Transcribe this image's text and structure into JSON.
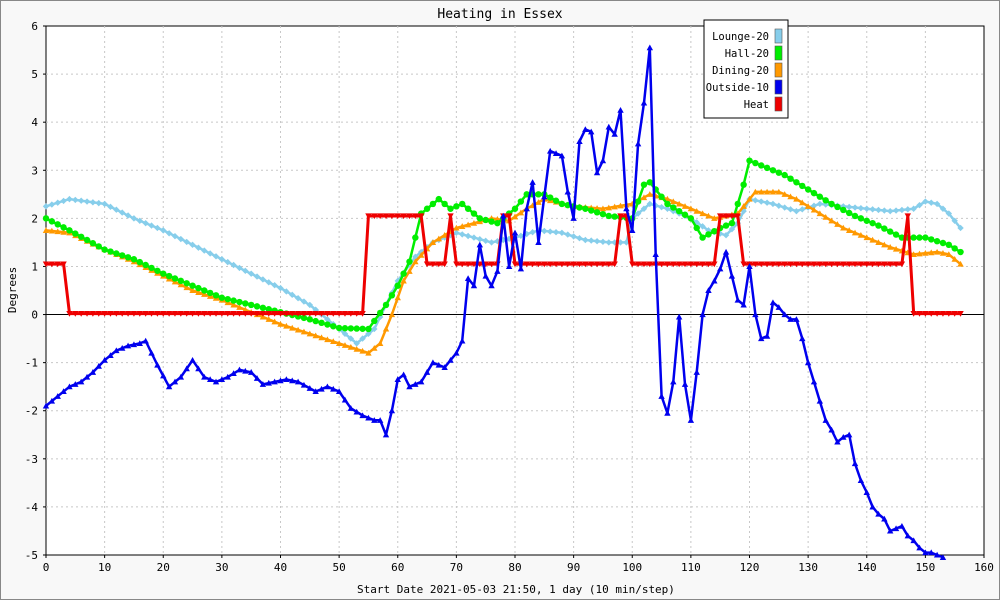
{
  "chart_data": {
    "type": "line",
    "title": "Heating in Essex",
    "xlabel": "Start Date 2021-05-03 21:50, 1 day (10 min/step)",
    "ylabel": "Degrees",
    "xlim": [
      0,
      160
    ],
    "ylim": [
      -5,
      6
    ],
    "x_ticks": [
      0,
      10,
      20,
      30,
      40,
      50,
      60,
      70,
      80,
      90,
      100,
      110,
      120,
      130,
      140,
      150,
      160
    ],
    "y_ticks": [
      -5,
      -4,
      -3,
      -2,
      -1,
      0,
      1,
      2,
      3,
      4,
      5,
      6
    ],
    "grid": true,
    "legend_position": "top-right",
    "series": [
      {
        "name": "Lounge-20",
        "color": "#87ceeb",
        "marker": "diamond",
        "points": [
          [
            0,
            2.25
          ],
          [
            4,
            2.4
          ],
          [
            10,
            2.3
          ],
          [
            15,
            2.0
          ],
          [
            20,
            1.75
          ],
          [
            25,
            1.45
          ],
          [
            30,
            1.15
          ],
          [
            35,
            0.85
          ],
          [
            40,
            0.55
          ],
          [
            45,
            0.2
          ],
          [
            50,
            -0.3
          ],
          [
            53,
            -0.6
          ],
          [
            56,
            -0.3
          ],
          [
            58,
            0.2
          ],
          [
            60,
            0.7
          ],
          [
            63,
            1.2
          ],
          [
            66,
            1.5
          ],
          [
            70,
            1.7
          ],
          [
            73,
            1.6
          ],
          [
            76,
            1.5
          ],
          [
            80,
            1.6
          ],
          [
            84,
            1.75
          ],
          [
            88,
            1.7
          ],
          [
            92,
            1.55
          ],
          [
            96,
            1.5
          ],
          [
            99,
            1.5
          ],
          [
            100,
            2.0
          ],
          [
            103,
            2.3
          ],
          [
            106,
            2.2
          ],
          [
            110,
            2.0
          ],
          [
            113,
            1.75
          ],
          [
            116,
            1.65
          ],
          [
            118,
            1.9
          ],
          [
            120,
            2.4
          ],
          [
            124,
            2.3
          ],
          [
            128,
            2.15
          ],
          [
            132,
            2.3
          ],
          [
            136,
            2.25
          ],
          [
            140,
            2.2
          ],
          [
            144,
            2.15
          ],
          [
            148,
            2.2
          ],
          [
            150,
            2.35
          ],
          [
            152,
            2.3
          ],
          [
            154,
            2.1
          ],
          [
            156,
            1.8
          ]
        ]
      },
      {
        "name": "Hall-20",
        "color": "#00ee00",
        "marker": "circle",
        "points": [
          [
            0,
            2.0
          ],
          [
            4,
            1.75
          ],
          [
            10,
            1.35
          ],
          [
            15,
            1.15
          ],
          [
            20,
            0.85
          ],
          [
            25,
            0.6
          ],
          [
            30,
            0.35
          ],
          [
            35,
            0.2
          ],
          [
            40,
            0.05
          ],
          [
            45,
            -0.1
          ],
          [
            50,
            -0.28
          ],
          [
            55,
            -0.3
          ],
          [
            58,
            0.2
          ],
          [
            60,
            0.6
          ],
          [
            62,
            1.1
          ],
          [
            64,
            2.1
          ],
          [
            67,
            2.4
          ],
          [
            69,
            2.2
          ],
          [
            71,
            2.3
          ],
          [
            74,
            2.0
          ],
          [
            77,
            1.9
          ],
          [
            80,
            2.2
          ],
          [
            82,
            2.5
          ],
          [
            85,
            2.5
          ],
          [
            88,
            2.3
          ],
          [
            92,
            2.2
          ],
          [
            96,
            2.05
          ],
          [
            100,
            2.0
          ],
          [
            102,
            2.7
          ],
          [
            103,
            2.75
          ],
          [
            106,
            2.3
          ],
          [
            110,
            2.0
          ],
          [
            112,
            1.6
          ],
          [
            115,
            1.8
          ],
          [
            117,
            1.9
          ],
          [
            119,
            2.7
          ],
          [
            120,
            3.2
          ],
          [
            122,
            3.1
          ],
          [
            126,
            2.9
          ],
          [
            130,
            2.6
          ],
          [
            134,
            2.3
          ],
          [
            138,
            2.05
          ],
          [
            142,
            1.85
          ],
          [
            146,
            1.6
          ],
          [
            150,
            1.6
          ],
          [
            154,
            1.45
          ],
          [
            156,
            1.3
          ]
        ]
      },
      {
        "name": "Dining-20",
        "color": "#ff9900",
        "marker": "triangle",
        "points": [
          [
            0,
            1.75
          ],
          [
            4,
            1.7
          ],
          [
            10,
            1.35
          ],
          [
            15,
            1.1
          ],
          [
            20,
            0.8
          ],
          [
            25,
            0.5
          ],
          [
            30,
            0.3
          ],
          [
            35,
            0.05
          ],
          [
            40,
            -0.2
          ],
          [
            45,
            -0.4
          ],
          [
            50,
            -0.6
          ],
          [
            55,
            -0.8
          ],
          [
            57,
            -0.6
          ],
          [
            59,
            0.0
          ],
          [
            61,
            0.7
          ],
          [
            63,
            1.1
          ],
          [
            66,
            1.5
          ],
          [
            70,
            1.8
          ],
          [
            73,
            1.9
          ],
          [
            76,
            2.0
          ],
          [
            79,
            1.95
          ],
          [
            82,
            2.2
          ],
          [
            85,
            2.4
          ],
          [
            90,
            2.25
          ],
          [
            95,
            2.2
          ],
          [
            100,
            2.3
          ],
          [
            103,
            2.5
          ],
          [
            106,
            2.4
          ],
          [
            110,
            2.2
          ],
          [
            114,
            2.0
          ],
          [
            118,
            2.1
          ],
          [
            121,
            2.55
          ],
          [
            125,
            2.55
          ],
          [
            128,
            2.4
          ],
          [
            132,
            2.1
          ],
          [
            136,
            1.8
          ],
          [
            140,
            1.6
          ],
          [
            144,
            1.4
          ],
          [
            148,
            1.25
          ],
          [
            152,
            1.3
          ],
          [
            154,
            1.25
          ],
          [
            156,
            1.05
          ]
        ]
      },
      {
        "name": "Outside-10",
        "color": "#0000ee",
        "marker": "triangle",
        "points": [
          [
            0,
            -1.9
          ],
          [
            2,
            -1.7
          ],
          [
            4,
            -1.5
          ],
          [
            6,
            -1.4
          ],
          [
            8,
            -1.2
          ],
          [
            10,
            -0.95
          ],
          [
            12,
            -0.75
          ],
          [
            14,
            -0.65
          ],
          [
            16,
            -0.6
          ],
          [
            17,
            -0.55
          ],
          [
            19,
            -1.05
          ],
          [
            21,
            -1.5
          ],
          [
            23,
            -1.3
          ],
          [
            25,
            -0.95
          ],
          [
            27,
            -1.3
          ],
          [
            29,
            -1.4
          ],
          [
            31,
            -1.3
          ],
          [
            33,
            -1.15
          ],
          [
            35,
            -1.2
          ],
          [
            37,
            -1.45
          ],
          [
            39,
            -1.4
          ],
          [
            41,
            -1.35
          ],
          [
            43,
            -1.4
          ],
          [
            46,
            -1.6
          ],
          [
            48,
            -1.5
          ],
          [
            50,
            -1.6
          ],
          [
            52,
            -1.95
          ],
          [
            54,
            -2.1
          ],
          [
            56,
            -2.2
          ],
          [
            57,
            -2.2
          ],
          [
            58,
            -2.5
          ],
          [
            59,
            -2.0
          ],
          [
            60,
            -1.35
          ],
          [
            61,
            -1.25
          ],
          [
            62,
            -1.5
          ],
          [
            64,
            -1.4
          ],
          [
            66,
            -1.0
          ],
          [
            68,
            -1.1
          ],
          [
            70,
            -0.8
          ],
          [
            71,
            -0.55
          ],
          [
            72,
            0.75
          ],
          [
            73,
            0.6
          ],
          [
            74,
            1.45
          ],
          [
            75,
            0.8
          ],
          [
            76,
            0.6
          ],
          [
            77,
            0.9
          ],
          [
            78,
            2.05
          ],
          [
            79,
            1.0
          ],
          [
            80,
            1.7
          ],
          [
            81,
            0.95
          ],
          [
            82,
            2.2
          ],
          [
            83,
            2.75
          ],
          [
            84,
            1.5
          ],
          [
            85,
            2.45
          ],
          [
            86,
            3.4
          ],
          [
            88,
            3.3
          ],
          [
            89,
            2.55
          ],
          [
            90,
            2.0
          ],
          [
            91,
            3.6
          ],
          [
            92,
            3.85
          ],
          [
            93,
            3.8
          ],
          [
            94,
            2.95
          ],
          [
            95,
            3.2
          ],
          [
            96,
            3.9
          ],
          [
            97,
            3.75
          ],
          [
            98,
            4.25
          ],
          [
            99,
            2.2
          ],
          [
            100,
            1.75
          ],
          [
            101,
            3.55
          ],
          [
            102,
            4.4
          ],
          [
            103,
            5.55
          ],
          [
            104,
            1.25
          ],
          [
            105,
            -1.7
          ],
          [
            106,
            -2.05
          ],
          [
            107,
            -1.4
          ],
          [
            108,
            -0.05
          ],
          [
            109,
            -1.45
          ],
          [
            110,
            -2.2
          ],
          [
            111,
            -1.2
          ],
          [
            112,
            0.0
          ],
          [
            113,
            0.5
          ],
          [
            114,
            0.7
          ],
          [
            115,
            0.95
          ],
          [
            116,
            1.3
          ],
          [
            117,
            0.8
          ],
          [
            118,
            0.3
          ],
          [
            119,
            0.2
          ],
          [
            120,
            1.0
          ],
          [
            121,
            0.0
          ],
          [
            122,
            -0.5
          ],
          [
            123,
            -0.45
          ],
          [
            124,
            0.25
          ],
          [
            125,
            0.15
          ],
          [
            126,
            0.0
          ],
          [
            127,
            -0.1
          ],
          [
            128,
            -0.1
          ],
          [
            129,
            -0.5
          ],
          [
            130,
            -1.0
          ],
          [
            131,
            -1.4
          ],
          [
            132,
            -1.8
          ],
          [
            133,
            -2.2
          ],
          [
            134,
            -2.4
          ],
          [
            135,
            -2.65
          ],
          [
            136,
            -2.55
          ],
          [
            137,
            -2.5
          ],
          [
            138,
            -3.1
          ],
          [
            139,
            -3.45
          ],
          [
            140,
            -3.7
          ],
          [
            141,
            -4.0
          ],
          [
            142,
            -4.15
          ],
          [
            143,
            -4.25
          ],
          [
            144,
            -4.5
          ],
          [
            145,
            -4.45
          ],
          [
            146,
            -4.4
          ],
          [
            147,
            -4.6
          ],
          [
            148,
            -4.7
          ],
          [
            149,
            -4.85
          ],
          [
            150,
            -4.95
          ],
          [
            151,
            -4.95
          ],
          [
            152,
            -5.0
          ],
          [
            153,
            -5.05
          ]
        ]
      },
      {
        "name": "Heat",
        "color": "#ee0000",
        "marker": "triangle-down",
        "points": [
          [
            0,
            1.05
          ],
          [
            3,
            1.05
          ],
          [
            4,
            0.02
          ],
          [
            54,
            0.02
          ],
          [
            55,
            2.05
          ],
          [
            64,
            2.05
          ],
          [
            65,
            1.05
          ],
          [
            68,
            1.05
          ],
          [
            69,
            2.05
          ],
          [
            70,
            1.05
          ],
          [
            77,
            1.05
          ],
          [
            78,
            2.05
          ],
          [
            79,
            2.05
          ],
          [
            80,
            1.05
          ],
          [
            97,
            1.05
          ],
          [
            98,
            2.05
          ],
          [
            99,
            2.05
          ],
          [
            100,
            1.05
          ],
          [
            114,
            1.05
          ],
          [
            115,
            2.05
          ],
          [
            118,
            2.05
          ],
          [
            119,
            1.05
          ],
          [
            146,
            1.05
          ],
          [
            147,
            2.05
          ],
          [
            148,
            0.02
          ],
          [
            156,
            0.02
          ]
        ]
      }
    ]
  }
}
